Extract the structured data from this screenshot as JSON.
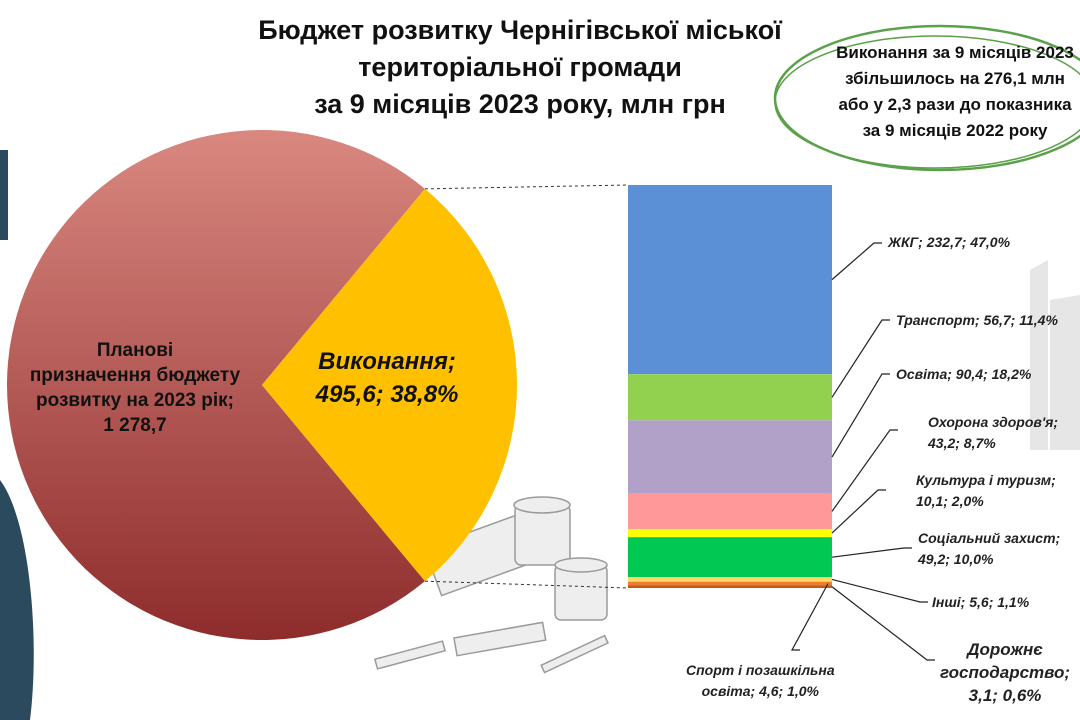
{
  "title": [
    "Бюджет розвитку Чернігівської міської",
    "територіальної громади",
    "за 9 місяців 2023 року, млн грн"
  ],
  "note": [
    "Виконання за 9 місяців 2023",
    "збільшилось на 276,1 млн",
    "або у 2,3 рази до показника",
    "за 9 місяців 2022 року"
  ],
  "colors": {
    "plan_slice": "#b23a3a",
    "exec_slice": "#ffc000",
    "note_ellipse": "#5aa14a",
    "side_panel": "#2c4a5e"
  },
  "chart_data": [
    {
      "type": "pie",
      "slices": [
        {
          "label": [
            "Планові",
            "призначення бюджету",
            "розвитку на 2023 рік;",
            "1 278,7"
          ],
          "value": 1278.7,
          "color": "#b23a3a"
        },
        {
          "label": [
            "Виконання;",
            "495,6; 38,8%"
          ],
          "value": 495.6,
          "share": 38.8,
          "color": "#ffc000"
        }
      ]
    },
    {
      "type": "bar",
      "stacked": true,
      "segments": [
        {
          "name": "ЖКГ",
          "value": 232.7,
          "share": 47.0,
          "color": "#5b8fd6",
          "label": [
            "ЖКГ;  232,7; 47,0%"
          ]
        },
        {
          "name": "Транспорт",
          "value": 56.7,
          "share": 11.4,
          "color": "#92d050",
          "label": [
            "Транспорт;  56,7; 11,4%"
          ]
        },
        {
          "name": "Освіта",
          "value": 90.4,
          "share": 18.2,
          "color": "#b1a0c7",
          "label": [
            "Освіта;  90,4; 18,2%"
          ]
        },
        {
          "name": "Охорона здоров'я",
          "value": 43.2,
          "share": 8.7,
          "color": "#ff9999",
          "label": [
            "Охорона здоров'я;",
            "43,2; 8,7%"
          ]
        },
        {
          "name": "Культура і туризм",
          "value": 10.1,
          "share": 2.0,
          "color": "#ffff00",
          "label": [
            "Культура і туризм;",
            "10,1; 2,0%"
          ]
        },
        {
          "name": "Соціальний захист",
          "value": 49.2,
          "share": 10.0,
          "color": "#00c853",
          "label": [
            "Соціальний захист;",
            "49,2; 10,0%"
          ]
        },
        {
          "name": "Інші",
          "value": 5.6,
          "share": 1.1,
          "color": "#ffd966",
          "label": [
            "Інші;  5,6; 1,1%"
          ]
        },
        {
          "name": "Спорт і позашкільна освіта",
          "value": 4.6,
          "share": 1.0,
          "color": "#ed7d31",
          "label": [
            "Спорт і позашкільна",
            "освіта;  4,6; 1,0%"
          ]
        },
        {
          "name": "Дорожнє господарство",
          "value": 3.1,
          "share": 0.6,
          "color": "#c55a11",
          "label": [
            "Дорожнє",
            "господарство;",
            "3,1; 0,6%"
          ]
        }
      ]
    }
  ]
}
